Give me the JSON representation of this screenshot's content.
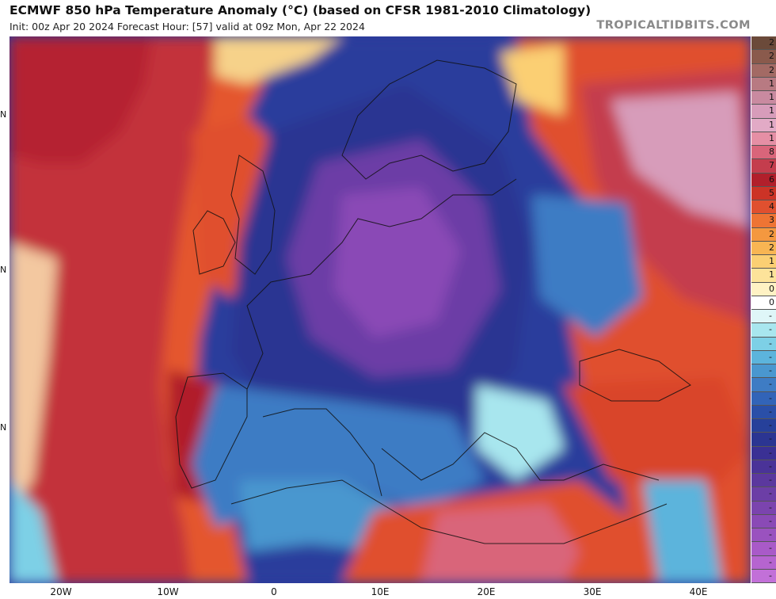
{
  "header": {
    "title": "ECMWF 850 hPa Temperature Anomaly (°C) (based on CFSR 1981-2010 Climatology)",
    "subtitle": "Init: 00z Apr 20 2024   Forecast Hour: [57]   valid at 09z Mon, Apr 22 2024",
    "brand": "TROPICALTIDBITS.COM"
  },
  "axes": {
    "x_ticks": [
      "20W",
      "10W",
      "0",
      "10E",
      "20E",
      "30E",
      "40E"
    ],
    "y_ticks": [
      "N",
      "N",
      "N"
    ]
  },
  "legend": {
    "labels": [
      "2",
      "2",
      "2",
      "1",
      "1",
      "1",
      "1",
      "1",
      "8",
      "7",
      "6",
      "5",
      "4",
      "3",
      "2",
      "2",
      "1",
      "1",
      "0",
      "0",
      "-",
      "-",
      "-",
      "-",
      "-",
      "-",
      "-",
      "-",
      "-",
      "-",
      "-",
      "-",
      "-",
      "-",
      "-",
      "-",
      "-",
      "-",
      "-",
      "-"
    ],
    "colors": [
      "#6b4a3a",
      "#8a5a4c",
      "#a36a64",
      "#b87a82",
      "#c98aa0",
      "#d79cba",
      "#e2aac6",
      "#e58fa5",
      "#d9657a",
      "#c43d4d",
      "#b11f2b",
      "#cc3326",
      "#e0502f",
      "#ee7434",
      "#f4983f",
      "#f8b553",
      "#fbcf73",
      "#fde39a",
      "#fff2c4",
      "#ffffff",
      "#dff6f8",
      "#a8e6ee",
      "#7dd0e6",
      "#5cb4dc",
      "#4a97cf",
      "#3e7cc4",
      "#3264b8",
      "#2a4fa8",
      "#26409a",
      "#2b3592",
      "#3a3094",
      "#4a3398",
      "#5b389e",
      "#6c3ea6",
      "#7b44ae",
      "#8a4ab6",
      "#9a52bf",
      "#a95ac8",
      "#b664d0",
      "#c270d8"
    ]
  }
}
